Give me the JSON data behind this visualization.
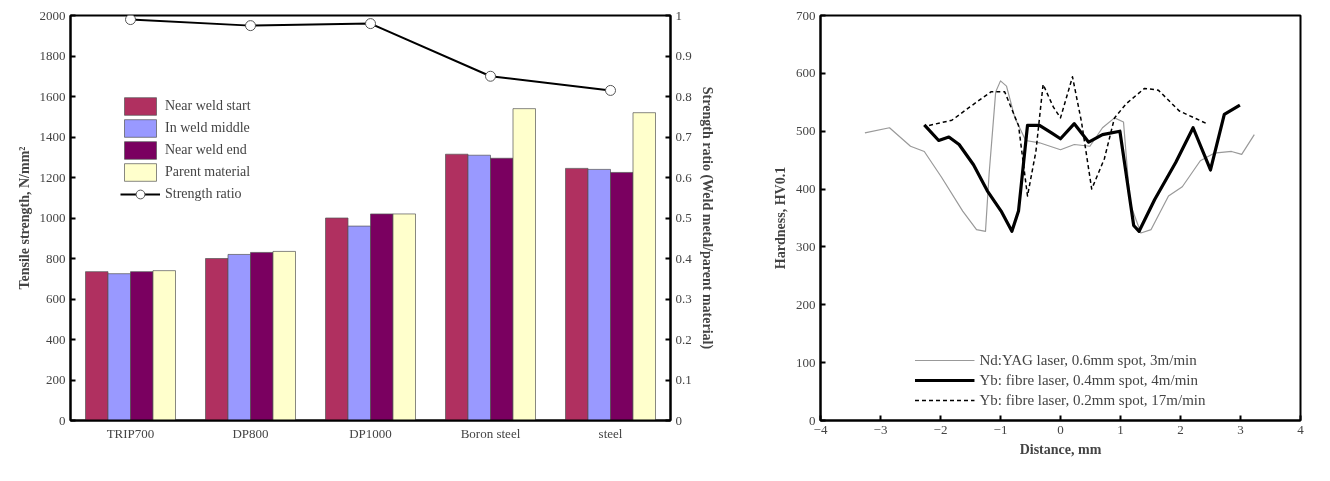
{
  "chart_data": [
    {
      "type": "bar",
      "categories": [
        "TRIP700",
        "DP800",
        "DP1000",
        "Boron steel",
        "steel"
      ],
      "ylabel": "Tensile strength, N/mm²",
      "y2label": "Strength ratio (Weld metal/parent material)",
      "ylim": [
        0,
        2000
      ],
      "yticks": [
        0,
        200,
        400,
        600,
        800,
        1000,
        1200,
        1400,
        1600,
        1800,
        2000
      ],
      "y2lim": [
        0,
        1
      ],
      "y2ticks": [
        0,
        0.1,
        0.2,
        0.3,
        0.4,
        0.5,
        0.6,
        0.7,
        0.8,
        0.9,
        1
      ],
      "grid": false,
      "legend": "left",
      "series": [
        {
          "name": "Near weld start",
          "color": "#b03060",
          "values": [
            735,
            800,
            1000,
            1315,
            1245
          ]
        },
        {
          "name": "In weld middle",
          "color": "#9999ff",
          "values": [
            725,
            820,
            960,
            1310,
            1240
          ]
        },
        {
          "name": "Near weld end",
          "color": "#7a0060",
          "values": [
            735,
            830,
            1020,
            1295,
            1225
          ]
        },
        {
          "name": "Parent material",
          "color": "#ffffcc",
          "values": [
            740,
            835,
            1020,
            1540,
            1520
          ]
        },
        {
          "name": "Strength ratio",
          "type": "line",
          "axis": "y2",
          "marker": "circle",
          "color": "#000000",
          "values": [
            0.99,
            0.975,
            0.98,
            0.85,
            0.815
          ]
        }
      ]
    },
    {
      "type": "line",
      "xlabel": "Distance, mm",
      "ylabel": "Hardness, HV0.1",
      "xlim": [
        -4,
        4
      ],
      "xticks": [
        -4,
        -3,
        -2,
        -1,
        0,
        1,
        2,
        3,
        4
      ],
      "ylim": [
        0,
        700
      ],
      "yticks": [
        0,
        100,
        200,
        300,
        400,
        500,
        600,
        700
      ],
      "grid": false,
      "legend": "bottom",
      "series": [
        {
          "name": "Nd:YAG laser, 0.6mm spot, 3m/min",
          "color": "#999999",
          "line_style": "solid",
          "x": [
            -3.26,
            -2.85,
            -2.5,
            -2.27,
            -1.98,
            -1.63,
            -1.4,
            -1.25,
            -1.19,
            -1.08,
            -1.0,
            -0.9,
            -0.76,
            -0.58,
            -0.35,
            0.0,
            0.23,
            0.49,
            0.7,
            0.9,
            1.05,
            1.16,
            1.34,
            1.51,
            1.8,
            2.03,
            2.33,
            2.56,
            2.85,
            3.02,
            3.23
          ],
          "values": [
            497,
            506,
            474,
            465,
            420,
            362,
            330,
            327,
            426,
            568,
            587,
            578,
            523,
            484,
            480,
            468,
            477,
            474,
            506,
            523,
            516,
            375,
            324,
            330,
            388,
            404,
            449,
            462,
            465,
            460,
            494
          ]
        },
        {
          "name": "Yb: fibre laser, 0.4mm spot, 4m/min",
          "color": "#000000",
          "line_style": "solid",
          "x": [
            -2.27,
            -2.03,
            -1.86,
            -1.69,
            -1.45,
            -1.22,
            -0.99,
            -0.81,
            -0.7,
            -0.55,
            -0.35,
            -0.15,
            0.0,
            0.23,
            0.47,
            0.7,
            0.99,
            1.22,
            1.31,
            1.57,
            1.92,
            2.21,
            2.5,
            2.73,
            2.99
          ],
          "values": [
            511,
            484,
            490,
            477,
            442,
            397,
            362,
            327,
            362,
            510,
            510,
            497,
            487,
            513,
            481,
            494,
            500,
            337,
            327,
            382,
            446,
            506,
            433,
            529,
            545
          ]
        },
        {
          "name": "Yb: fibre laser, 0.2mm spot, 17m/min",
          "color": "#000000",
          "line_style": "dashed",
          "x": [
            -2.19,
            -1.81,
            -1.51,
            -1.16,
            -0.93,
            -0.7,
            -0.55,
            -0.41,
            -0.29,
            -0.12,
            0.0,
            0.2,
            0.35,
            0.52,
            0.73,
            0.9,
            1.1,
            1.4,
            1.63,
            1.98,
            2.44
          ],
          "values": [
            510,
            519,
            542,
            568,
            568,
            510,
            388,
            465,
            581,
            542,
            523,
            594,
            516,
            400,
            452,
            523,
            548,
            574,
            571,
            535,
            513
          ]
        }
      ]
    }
  ]
}
